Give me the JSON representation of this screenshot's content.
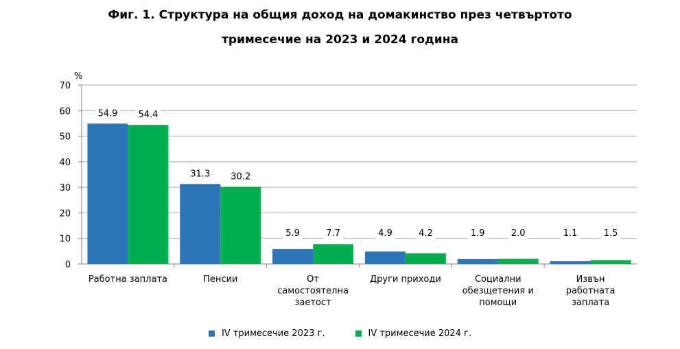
{
  "chart_data": {
    "type": "bar",
    "title": "Фиг. 1. Структура на общия доход на домакинство през четвъртото",
    "subtitle": "тримесечие на 2023 и 2024 година",
    "ylabel": "%",
    "ylim": [
      0,
      70
    ],
    "yticks": [
      0,
      10,
      20,
      30,
      40,
      50,
      60,
      70
    ],
    "grid": true,
    "legend_position": "bottom",
    "categories": [
      [
        "Работна заплата"
      ],
      [
        "Пенсии"
      ],
      [
        "От",
        "самостоятелна",
        "заетост"
      ],
      [
        "Други приходи"
      ],
      [
        "Социални",
        "обезщетения и",
        "помощи"
      ],
      [
        "Извън",
        "работната",
        "заплата"
      ]
    ],
    "series": [
      {
        "name": "IV тримесечие 2023 г.",
        "color": "#2e75b6",
        "values": [
          54.9,
          31.3,
          5.9,
          4.9,
          1.9,
          1.1
        ],
        "labels": [
          "54.9",
          "31.3",
          "5.9",
          "4.9",
          "1.9",
          "1.1"
        ]
      },
      {
        "name": "IV тримесечие 2024 г.",
        "color": "#00b050",
        "values": [
          54.4,
          30.2,
          7.7,
          4.2,
          2.0,
          1.5
        ],
        "labels": [
          "54.4",
          "30.2",
          "7.7",
          "4.2",
          "2.0",
          "1.5"
        ]
      }
    ]
  }
}
